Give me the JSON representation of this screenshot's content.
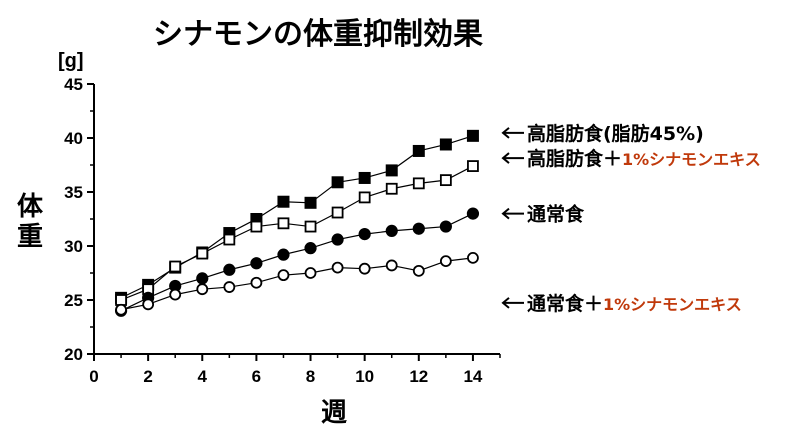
{
  "colors": {
    "text": "#000000",
    "accent": "#c0390b",
    "background": "#ffffff"
  },
  "chart_data": {
    "type": "line",
    "title": "シナモンの体重抑制効果",
    "xlabel": "週",
    "ylabel": "体重",
    "yunit": "[g]",
    "xlim": [
      0,
      15
    ],
    "ylim": [
      20,
      45
    ],
    "xticks": [
      "0",
      "2",
      "4",
      "6",
      "8",
      "10",
      "12",
      "14"
    ],
    "yticks": [
      "20",
      "25",
      "30",
      "35",
      "40",
      "45"
    ],
    "grid": false,
    "legend_placement": "right",
    "x": [
      1,
      2,
      3,
      4,
      5,
      6,
      7,
      8,
      9,
      10,
      11,
      12,
      13,
      14
    ],
    "series": [
      {
        "name": "高脂肪食(脂肪45%)",
        "label_main": "高脂肪食(脂肪45%)",
        "label_accent": "",
        "marker": "filled-square",
        "values": [
          25.2,
          26.4,
          28.0,
          29.4,
          31.2,
          32.5,
          34.1,
          34.0,
          35.9,
          36.3,
          37.0,
          38.8,
          39.4,
          40.2
        ]
      },
      {
        "name": "高脂肪食＋1%シナモンエキス",
        "label_main": "高脂肪食＋",
        "label_accent": "1%シナモンエキス",
        "marker": "open-square",
        "values": [
          25.0,
          26.0,
          28.1,
          29.3,
          30.6,
          31.8,
          32.1,
          31.8,
          33.1,
          34.5,
          35.3,
          35.8,
          36.1,
          37.4
        ]
      },
      {
        "name": "通常食",
        "label_main": "通常食",
        "label_accent": "",
        "marker": "filled-circle",
        "values": [
          24.0,
          25.2,
          26.3,
          27.0,
          27.8,
          28.4,
          29.2,
          29.8,
          30.6,
          31.1,
          31.4,
          31.6,
          31.8,
          33.0
        ]
      },
      {
        "name": "通常食＋1%シナモンエキス",
        "label_main": "通常食＋",
        "label_accent": "1%シナモンエキス",
        "marker": "open-circle",
        "values": [
          24.1,
          24.6,
          25.5,
          26.0,
          26.2,
          26.6,
          27.3,
          27.5,
          28.0,
          27.9,
          28.2,
          27.7,
          28.6,
          28.9
        ]
      }
    ]
  }
}
